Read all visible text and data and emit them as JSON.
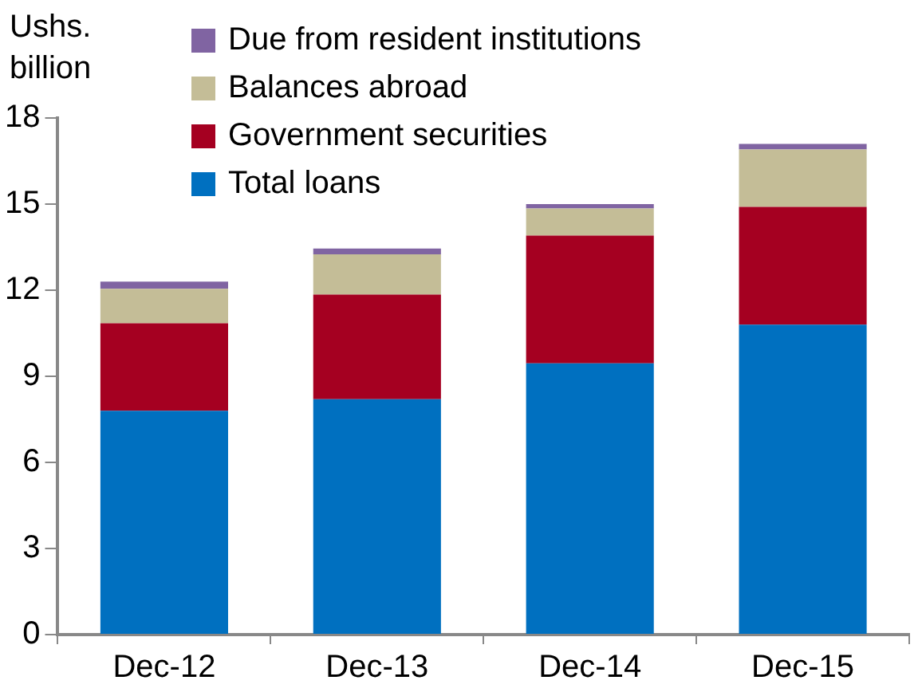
{
  "chart_data": {
    "type": "bar",
    "stacked": true,
    "ylabel": "Ushs. billion",
    "categories": [
      "Dec-12",
      "Dec-13",
      "Dec-14",
      "Dec-15"
    ],
    "series": [
      {
        "name": "Total loans",
        "color": "#0070c0",
        "values": [
          7.8,
          8.2,
          9.45,
          10.8
        ]
      },
      {
        "name": "Government securities",
        "color": "#a50021",
        "values": [
          3.05,
          3.65,
          4.45,
          4.1
        ]
      },
      {
        "name": "Balances abroad",
        "color": "#c4bd97",
        "values": [
          1.2,
          1.4,
          0.95,
          2.0
        ]
      },
      {
        "name": "Due from resident institutions",
        "color": "#8064a2",
        "values": [
          0.25,
          0.2,
          0.15,
          0.2
        ]
      }
    ],
    "ylim": [
      0,
      18
    ],
    "yticks": [
      0,
      3,
      6,
      9,
      12,
      15,
      18
    ],
    "grid": false,
    "legend": "top left"
  }
}
